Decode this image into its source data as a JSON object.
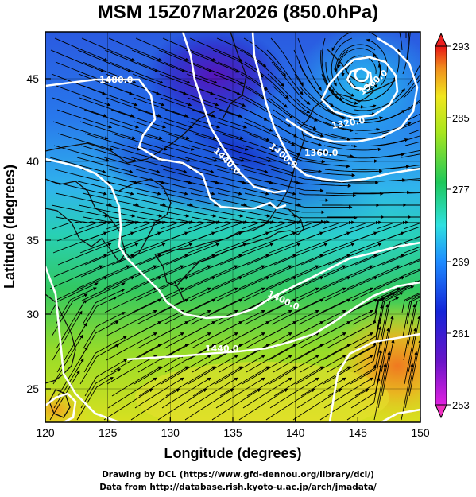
{
  "title": "MSM 15Z07Mar2026 (850.0hPa)",
  "xlabel": "Longitude (degrees)",
  "ylabel": "Latitude  (degrees)",
  "x_ticks": [
    "120",
    "125",
    "130",
    "135",
    "140",
    "145",
    "150"
  ],
  "y_ticks": [
    "25",
    "30",
    "35",
    "40",
    "45"
  ],
  "colorbar": {
    "min": 253,
    "max": 293,
    "tick_labels": [
      "293",
      "285",
      "277",
      "269",
      "261",
      "253"
    ]
  },
  "contour_labels": [
    "1480.0",
    "1440.0",
    "1400.0",
    "1360.0",
    "1320.0",
    "1360.0",
    "1400.0",
    "1440.0",
    "1480.0",
    "1520.0"
  ],
  "footer": {
    "line1": "Drawing by DCL (https://www.gfd-dennou.org/library/dcl/)",
    "line2": "Data from http://database.rish.kyoto-u.ac.jp/arch/jmadata/"
  },
  "chart_data": {
    "type": "heatmap",
    "title": "MSM 15Z07Mar2026 (850.0hPa)",
    "xlabel": "Longitude (degrees)",
    "ylabel": "Latitude  (degrees)",
    "xlim": [
      120,
      150
    ],
    "ylim": [
      22.5,
      47.5
    ],
    "color_range": [
      253,
      293
    ],
    "contour_levels": [
      1320,
      1360,
      1400,
      1440,
      1480,
      1520
    ],
    "low_center": {
      "lon": 145.5,
      "lat": 45.5
    },
    "grid": true
  }
}
